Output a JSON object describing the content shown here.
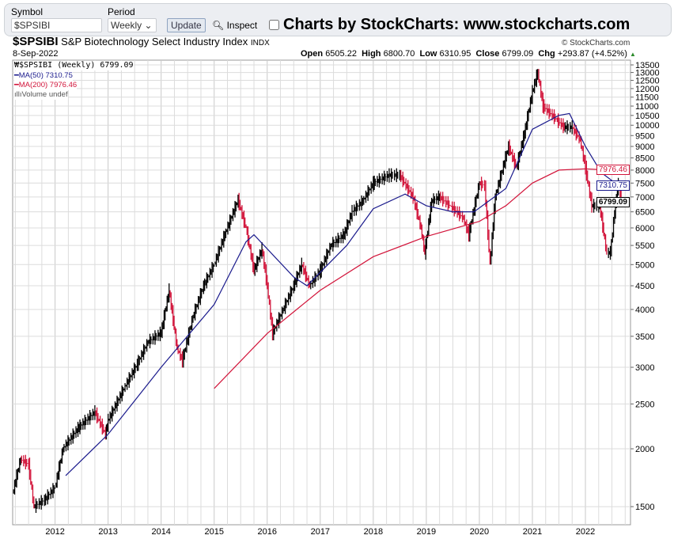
{
  "form": {
    "symbol_label": "Symbol",
    "symbol_value": "$SPSIBI",
    "period_label": "Period",
    "period_value": "Weekly",
    "update_label": "Update",
    "inspect_label": "Inspect",
    "brand": "Charts by StockCharts:  www.stockcharts.com"
  },
  "header": {
    "symbol": "$SPSIBI",
    "name": "S&P Biotechnology Select Industry Index",
    "exchange": "INDX",
    "date": "8-Sep-2022",
    "copyright": "© StockCharts.com",
    "open_label": "Open",
    "open": "6505.22",
    "high_label": "High",
    "high": "6800.70",
    "low_label": "Low",
    "low": "6310.95",
    "close_label": "Close",
    "close": "6799.09",
    "chg_label": "Chg",
    "chg": "+293.87 (+4.52%)"
  },
  "legend": {
    "price": "$SPSIBI (Weekly) 6799.09",
    "ma50": "MA(50) 7310.75",
    "ma200": "MA(200) 7976.46",
    "volume": "Volume undef"
  },
  "colors": {
    "up": "#000000",
    "down": "#d2143a",
    "ma50": "#1a1a8c",
    "ma200": "#d2143a",
    "grid": "#dcdcdc"
  },
  "chart_data": {
    "type": "ohlc",
    "y_scale": "log",
    "ylim": [
      1450,
      13800
    ],
    "xlim": [
      2011.2,
      2022.85
    ],
    "grid": true,
    "legend_placement": "top-left",
    "x_ticks": [
      "2012",
      "2013",
      "2014",
      "2015",
      "2016",
      "2017",
      "2018",
      "2019",
      "2020",
      "2021",
      "2022"
    ],
    "y_ticks": [
      1500,
      2000,
      2500,
      3000,
      3500,
      4000,
      4500,
      5000,
      5500,
      6000,
      6500,
      7000,
      7500,
      8000,
      8500,
      9000,
      9500,
      10000,
      10500,
      11000,
      11500,
      12000,
      12500,
      13000,
      13500
    ],
    "last_labels": {
      "ma200": "7976.46",
      "ma50": "7310.75",
      "close": "6799.09"
    },
    "price": [
      [
        2011.2,
        1600
      ],
      [
        2011.35,
        1900
      ],
      [
        2011.5,
        1850
      ],
      [
        2011.6,
        1500
      ],
      [
        2011.8,
        1550
      ],
      [
        2012.0,
        1650
      ],
      [
        2012.15,
        2000
      ],
      [
        2012.45,
        2225
      ],
      [
        2012.75,
        2400
      ],
      [
        2012.95,
        2150
      ],
      [
        2013.0,
        2300
      ],
      [
        2013.3,
        2700
      ],
      [
        2013.55,
        3050
      ],
      [
        2013.75,
        3400
      ],
      [
        2014.0,
        3560
      ],
      [
        2014.15,
        4400
      ],
      [
        2014.3,
        3300
      ],
      [
        2014.4,
        3100
      ],
      [
        2014.6,
        3860
      ],
      [
        2014.8,
        4500
      ],
      [
        2015.0,
        5000
      ],
      [
        2015.2,
        5800
      ],
      [
        2015.45,
        6900
      ],
      [
        2015.6,
        6000
      ],
      [
        2015.75,
        4850
      ],
      [
        2015.9,
        5400
      ],
      [
        2016.0,
        4500
      ],
      [
        2016.1,
        3550
      ],
      [
        2016.3,
        4000
      ],
      [
        2016.5,
        4500
      ],
      [
        2016.65,
        5000
      ],
      [
        2016.8,
        4500
      ],
      [
        2017.0,
        4850
      ],
      [
        2017.2,
        5500
      ],
      [
        2017.45,
        5800
      ],
      [
        2017.6,
        6500
      ],
      [
        2017.8,
        6850
      ],
      [
        2018.0,
        7500
      ],
      [
        2018.3,
        7800
      ],
      [
        2018.5,
        7800
      ],
      [
        2018.75,
        7000
      ],
      [
        2018.9,
        6000
      ],
      [
        2018.97,
        5300
      ],
      [
        2019.1,
        6850
      ],
      [
        2019.25,
        7000
      ],
      [
        2019.45,
        6700
      ],
      [
        2019.7,
        6300
      ],
      [
        2019.8,
        5800
      ],
      [
        2020.0,
        7500
      ],
      [
        2020.1,
        7400
      ],
      [
        2020.2,
        5000
      ],
      [
        2020.3,
        7000
      ],
      [
        2020.55,
        9000
      ],
      [
        2020.7,
        8100
      ],
      [
        2020.85,
        9600
      ],
      [
        2021.0,
        11800
      ],
      [
        2021.1,
        13000
      ],
      [
        2021.2,
        11000
      ],
      [
        2021.45,
        10300
      ],
      [
        2021.6,
        9900
      ],
      [
        2021.75,
        9900
      ],
      [
        2021.9,
        9300
      ],
      [
        2022.0,
        8100
      ],
      [
        2022.12,
        6700
      ],
      [
        2022.27,
        6700
      ],
      [
        2022.4,
        5300
      ],
      [
        2022.47,
        5300
      ],
      [
        2022.55,
        6500
      ],
      [
        2022.62,
        7500
      ],
      [
        2022.69,
        6799.09
      ]
    ],
    "ma50": [
      [
        2012.2,
        1750
      ],
      [
        2013.0,
        2150
      ],
      [
        2014.0,
        3000
      ],
      [
        2015.0,
        4100
      ],
      [
        2015.6,
        5600
      ],
      [
        2015.75,
        5800
      ],
      [
        2016.5,
        4700
      ],
      [
        2016.75,
        4500
      ],
      [
        2017.5,
        5500
      ],
      [
        2018.0,
        6600
      ],
      [
        2018.6,
        7100
      ],
      [
        2019.0,
        6700
      ],
      [
        2019.5,
        6500
      ],
      [
        2019.9,
        6500
      ],
      [
        2020.5,
        7300
      ],
      [
        2021.0,
        9800
      ],
      [
        2021.5,
        10500
      ],
      [
        2021.7,
        10600
      ],
      [
        2022.0,
        9000
      ],
      [
        2022.3,
        7900
      ],
      [
        2022.69,
        7310.75
      ]
    ],
    "ma200": [
      [
        2015.0,
        2700
      ],
      [
        2016.0,
        3550
      ],
      [
        2017.0,
        4400
      ],
      [
        2018.0,
        5200
      ],
      [
        2019.0,
        5750
      ],
      [
        2020.0,
        6200
      ],
      [
        2020.5,
        6700
      ],
      [
        2021.0,
        7500
      ],
      [
        2021.5,
        8000
      ],
      [
        2022.0,
        8050
      ],
      [
        2022.69,
        7976.46
      ]
    ]
  }
}
